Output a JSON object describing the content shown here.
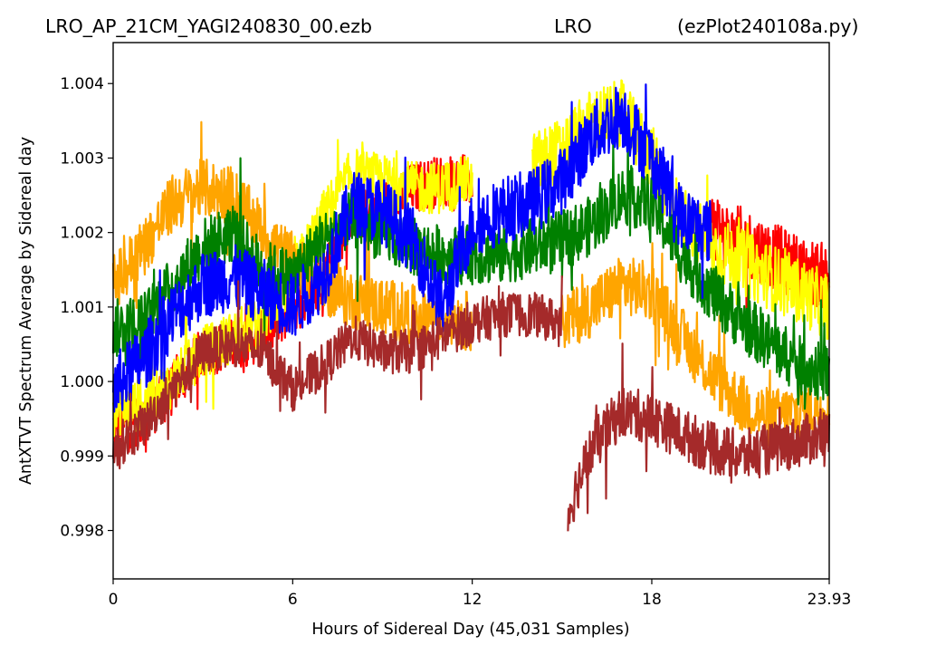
{
  "title": {
    "left": "LRO_AP_21CM_YAGI240830_00.ezb",
    "center": "LRO",
    "right": "(ezPlot240108a.py)"
  },
  "chart_data": {
    "type": "line",
    "xlabel": "Hours of Sidereal Day  (45,031 Samples)",
    "ylabel": "AntXTVT Spectrum Average by Sidereal day",
    "xlim": [
      0,
      23.93
    ],
    "ylim": [
      0.99735,
      1.00455
    ],
    "x_ticks": [
      0,
      6,
      12,
      18,
      23.93
    ],
    "x_tick_labels": [
      "0",
      "6",
      "12",
      "18",
      "23.93"
    ],
    "y_ticks": [
      0.998,
      0.999,
      1.0,
      1.001,
      1.002,
      1.003,
      1.004
    ],
    "y_tick_labels": [
      "0.998",
      "0.999",
      "1.000",
      "1.001",
      "1.002",
      "1.003",
      "1.004"
    ],
    "grid": false,
    "legend": "none",
    "series": [
      {
        "color": "#ff0000",
        "segments": [
          {
            "x": [
              0,
              1,
              2,
              3,
              4,
              5,
              6,
              7,
              8,
              9,
              10,
              11,
              12
            ],
            "y": [
              0.9994,
              0.9995,
              0.9999,
              1.0004,
              1.0005,
              1.0006,
              1.001,
              1.0014,
              1.0023,
              1.0022,
              1.0026,
              1.0027,
              1.0027
            ],
            "noise": 0.00035
          },
          {
            "x": [
              20,
              21,
              22,
              23,
              23.93
            ],
            "y": [
              1.002,
              1.0019,
              1.0017,
              1.0015,
              1.0014
            ],
            "noise": 0.00045
          }
        ]
      },
      {
        "color": "#ffff00",
        "segments": [
          {
            "x": [
              0,
              1,
              2,
              3,
              4,
              5,
              6,
              7,
              8,
              9,
              10,
              11,
              12
            ],
            "y": [
              0.9996,
              0.9997,
              1.0,
              1.0004,
              1.0006,
              1.0008,
              1.0014,
              1.0022,
              1.0028,
              1.0027,
              1.0026,
              1.0026,
              1.0027
            ],
            "noise": 0.00035
          },
          {
            "x": [
              14,
              15,
              16,
              17,
              18,
              19,
              20,
              21,
              22,
              23,
              23.93
            ],
            "y": [
              1.0029,
              1.0031,
              1.0035,
              1.0036,
              1.003,
              1.0022,
              1.0018,
              1.0016,
              1.0014,
              1.0012,
              1.001
            ],
            "noise": 0.00045
          }
        ]
      },
      {
        "color": "#ffa500",
        "segments": [
          {
            "x": [
              0,
              1,
              2,
              3,
              4,
              5,
              6,
              7,
              8,
              9,
              10,
              11,
              12
            ],
            "y": [
              1.0013,
              1.0018,
              1.0024,
              1.0026,
              1.0025,
              1.002,
              1.0016,
              1.0013,
              1.0011,
              1.001,
              1.0009,
              1.0009,
              1.0008
            ],
            "noise": 0.0004
          },
          {
            "x": [
              15,
              16,
              17,
              18,
              19,
              20,
              21,
              22,
              23,
              23.93
            ],
            "y": [
              1.0008,
              1.001,
              1.0013,
              1.0012,
              1.0006,
              1.0001,
              0.9997,
              0.9995,
              0.9996,
              0.9997
            ],
            "noise": 0.0004
          }
        ]
      },
      {
        "color": "#008000",
        "segments": [
          {
            "x": [
              0,
              1,
              2,
              3,
              4,
              5,
              6,
              7,
              8,
              9,
              10,
              11,
              12,
              13,
              14,
              15,
              16,
              17,
              18,
              19,
              20,
              21,
              22,
              23,
              23.93
            ],
            "y": [
              1.0007,
              1.0008,
              1.0013,
              1.0018,
              1.002,
              1.0015,
              1.0014,
              1.0019,
              1.0022,
              1.002,
              1.0018,
              1.0017,
              1.0017,
              1.0017,
              1.0018,
              1.0019,
              1.0021,
              1.0025,
              1.0024,
              1.0017,
              1.0012,
              1.0008,
              1.0005,
              1.0002,
              1.0001
            ],
            "noise": 0.0004
          }
        ]
      },
      {
        "color": "#0000ff",
        "segments": [
          {
            "x": [
              0,
              1,
              2,
              3,
              4,
              5,
              6,
              7,
              8,
              9,
              10,
              11,
              12,
              13,
              14,
              15,
              16,
              17,
              18,
              19,
              20
            ],
            "y": [
              0.9999,
              1.0003,
              1.0009,
              1.0013,
              1.0014,
              1.0012,
              1.001,
              1.0014,
              1.0024,
              1.0023,
              1.0019,
              1.001,
              1.0021,
              1.0023,
              1.0024,
              1.0027,
              1.0033,
              1.0036,
              1.003,
              1.0022,
              1.002
            ],
            "noise": 0.00045
          }
        ]
      },
      {
        "color": "#a52a2a",
        "segments": [
          {
            "x": [
              0,
              1,
              2,
              3,
              4,
              5,
              6,
              7,
              8,
              9,
              10,
              11,
              12,
              13,
              14,
              15
            ],
            "y": [
              0.9991,
              0.9994,
              0.9999,
              1.0004,
              1.0005,
              1.0004,
              0.9999,
              1.0002,
              1.0006,
              1.0004,
              1.0004,
              1.0006,
              1.0008,
              1.0009,
              1.0009,
              1.0008
            ],
            "noise": 0.0003
          },
          {
            "x": [
              15.2,
              15.5,
              16,
              17,
              18,
              19,
              20,
              21,
              22,
              23,
              23.93
            ],
            "y": [
              0.9982,
              0.9986,
              0.9991,
              0.9996,
              0.9995,
              0.9993,
              0.9991,
              0.999,
              0.9991,
              0.9992,
              0.9993
            ],
            "noise": 0.00035
          }
        ]
      }
    ]
  }
}
